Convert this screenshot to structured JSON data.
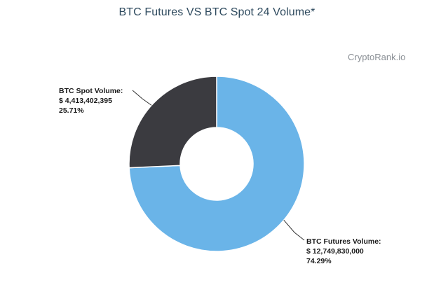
{
  "title": "BTC Futures VS BTC Spot 24 Volume*",
  "watermark": "CryptoRank.io",
  "chart_data": {
    "type": "pie",
    "donut": true,
    "title": "BTC Futures VS BTC Spot 24 Volume*",
    "slices": [
      {
        "name": "BTC Futures Volume",
        "label": "BTC Futures Volume:",
        "value": 12749830000,
        "value_text": "$ 12,749,830,000",
        "percent": 74.29,
        "percent_text": "74.29%",
        "color": "#6ab4e8"
      },
      {
        "name": "BTC Spot Volume",
        "label": "BTC Spot Volume:",
        "value": 4413402395,
        "value_text": "$ 4,413,402,395",
        "percent": 25.71,
        "percent_text": "25.71%",
        "color": "#3b3b40"
      }
    ],
    "legend": "none"
  }
}
